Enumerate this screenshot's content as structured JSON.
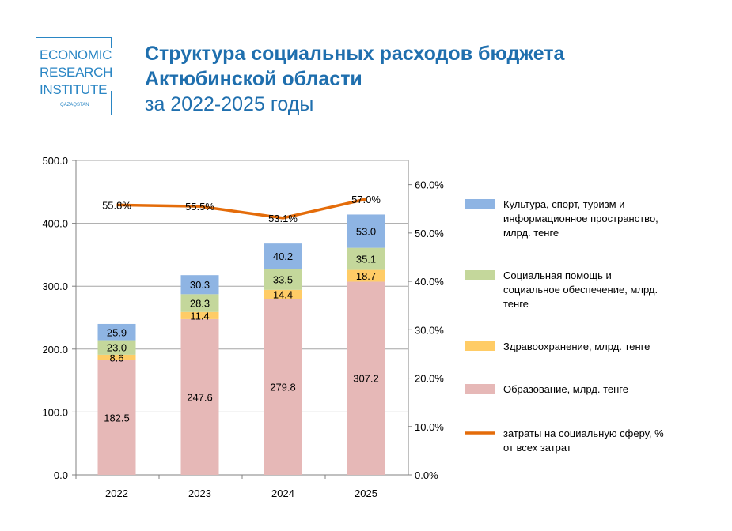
{
  "logo": {
    "line1": "ECONOMIC",
    "line2": "RESEARCH",
    "line3": "INSTITUTE",
    "sub": "QAZAQSTAN"
  },
  "header": {
    "title_line1": "Структура социальных расходов бюджета",
    "title_line2": "Актюбинской области",
    "subtitle": "за 2022-2025 годы"
  },
  "chart_data": {
    "type": "bar",
    "stacked": true,
    "categories": [
      "2022",
      "2023",
      "2024",
      "2025"
    ],
    "series": [
      {
        "name": "Образование, млрд. тенге",
        "values": [
          182.5,
          247.6,
          279.8,
          307.2
        ],
        "color": "#e6b8b7"
      },
      {
        "name": "Здравоохранение, млрд. тенге",
        "values": [
          8.6,
          11.4,
          14.4,
          18.7
        ],
        "color": "#ffcc66"
      },
      {
        "name": "Социальная помощь и социальное обеспечение, млрд. тенге",
        "values": [
          23.0,
          28.3,
          33.5,
          35.1
        ],
        "color": "#c4d79b"
      },
      {
        "name": "Культура, спорт, туризм и информационное пространство, млрд. тенге",
        "values": [
          25.9,
          30.3,
          40.2,
          53.0
        ],
        "color": "#8eb4e3"
      }
    ],
    "line_series": {
      "name": "затраты на социальную сферу, % от всех затрат",
      "values": [
        55.8,
        55.5,
        53.1,
        57.0
      ],
      "labels": [
        "55.8%",
        "55.5%",
        "53.1%",
        "57.0%"
      ],
      "color": "#e46c0a"
    },
    "ylim": [
      0,
      500
    ],
    "yticks": [
      "0.0",
      "100.0",
      "200.0",
      "300.0",
      "400.0",
      "500.0"
    ],
    "y2lim": [
      0,
      65
    ],
    "y2ticks": [
      "0.0%",
      "10.0%",
      "20.0%",
      "30.0%",
      "40.0%",
      "50.0%",
      "60.0%"
    ],
    "legend_order": [
      [
        "Культура, спорт, туризм и",
        "информационное пространство,",
        "млрд. тенге"
      ],
      [
        "Социальная помощь и",
        "социальное обеспечение, млрд.",
        "тенге"
      ],
      [
        "Здравоохранение, млрд. тенге"
      ],
      [
        "Образование, млрд. тенге"
      ],
      [
        "затраты на социальную сферу, %",
        "от всех затрат"
      ]
    ],
    "legend_placement": "right"
  }
}
